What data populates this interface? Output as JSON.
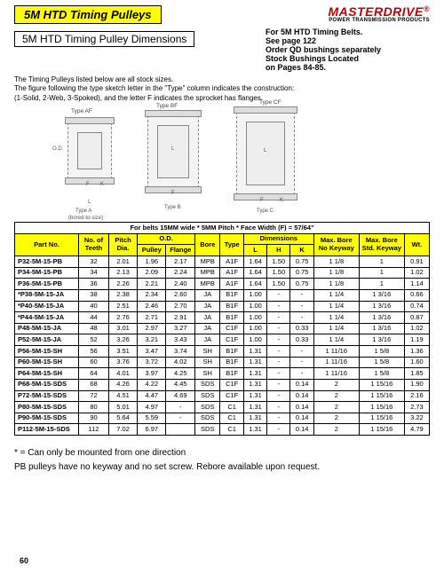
{
  "header": {
    "title": "5M HTD Timing Pulleys",
    "brand": "MASTERDRIVE",
    "brand_sub": "POWER TRANSMISSION PRODUCTS",
    "subtitle": "5M HTD Timing Pulley Dimensions",
    "right_lines": [
      "For 5M HTD Timing Belts.",
      "See page 122",
      "Order QD bushings separately",
      "Stock Bushings Located",
      "on Pages 84-85."
    ],
    "notes_l1": "The Timing Pulleys listed below are all stock sizes.",
    "notes_l2": "The figure following the type sketch letter in the \"Type\" column indicates the construction:",
    "notes_l3": "(1-Solid, 2-Web, 3-Spoked), and the letter F indicates the sprocket has flanges."
  },
  "diagram_labels": {
    "type_af": "Type AF",
    "type_bf": "Type BF",
    "type_cf": "Type CF",
    "type_a": "Type A",
    "type_a2": "(bored-to-size)",
    "type_b": "Type B",
    "type_c": "Type C",
    "od": "O.D.",
    "l": "L",
    "f": "F",
    "k": "K",
    "h": "H"
  },
  "table": {
    "caption": "For belts 15MM wide * 5MM Pitch * Face Width (F) = 57/64\"",
    "headers": {
      "part": "Part No.",
      "teeth": "No. of Teeth",
      "pitch": "Pitch Dia.",
      "od": "O.D.",
      "od_p": "Pulley",
      "od_f": "Flange",
      "bore": "Bore",
      "type": "Type",
      "dims": "Dimensions",
      "dL": "L",
      "dH": "H",
      "dK": "K",
      "maxnk": "Max. Bore No Keyway",
      "maxsk": "Max. Bore Std. Keyway",
      "wt": "Wt."
    },
    "rows": [
      {
        "p": "P32-5M-15-PB",
        "t": "32",
        "pd": "2.01",
        "odp": "1.96",
        "odf": "2.17",
        "bo": "MPB",
        "ty": "A1F",
        "l": "1.64",
        "h": "1.50",
        "k": "0.75",
        "nk": "1 1/8",
        "sk": "1",
        "wt": "0.91"
      },
      {
        "p": "P34-5M-15-PB",
        "t": "34",
        "pd": "2.13",
        "odp": "2.09",
        "odf": "2.24",
        "bo": "MPB",
        "ty": "A1F",
        "l": "1.64",
        "h": "1.50",
        "k": "0.75",
        "nk": "1 1/8",
        "sk": "1",
        "wt": "1.02"
      },
      {
        "p": "P36-5M-15-PB",
        "t": "36",
        "pd": "2.26",
        "odp": "2.21",
        "odf": "2.40",
        "bo": "MPB",
        "ty": "A1F",
        "l": "1.64",
        "h": "1.50",
        "k": "0.75",
        "nk": "1 1/8",
        "sk": "1",
        "wt": "1.14"
      },
      {
        "p": "*P38-5M-15-JA",
        "t": "38",
        "pd": "2.38",
        "odp": "2.34",
        "odf": "2.60",
        "bo": "JA",
        "ty": "B1F",
        "l": "1.00",
        "h": "-",
        "k": "-",
        "nk": "1 1/4",
        "sk": "1 3/16",
        "wt": "0.66"
      },
      {
        "p": "*P40-5M-15-JA",
        "t": "40",
        "pd": "2.51",
        "odp": "2.46",
        "odf": "2.70",
        "bo": "JA",
        "ty": "B1F",
        "l": "1.00",
        "h": "-",
        "k": "-",
        "nk": "1 1/4",
        "sk": "1 3/16",
        "wt": "0.74"
      },
      {
        "p": "*P44-5M-15-JA",
        "t": "44",
        "pd": "2.76",
        "odp": "2.71",
        "odf": "2.91",
        "bo": "JA",
        "ty": "B1F",
        "l": "1.00",
        "h": "-",
        "k": "-",
        "nk": "1 1/4",
        "sk": "1 3/16",
        "wt": "0.87"
      },
      {
        "p": "P48-5M-15-JA",
        "t": "48",
        "pd": "3.01",
        "odp": "2.97",
        "odf": "3.27",
        "bo": "JA",
        "ty": "C1F",
        "l": "1.00",
        "h": "-",
        "k": "0.33",
        "nk": "1 1/4",
        "sk": "1 3/16",
        "wt": "1.02"
      },
      {
        "p": "P52-5M-15-JA",
        "t": "52",
        "pd": "3.26",
        "odp": "3.21",
        "odf": "3.43",
        "bo": "JA",
        "ty": "C1F",
        "l": "1.00",
        "h": "-",
        "k": "0.33",
        "nk": "1 1/4",
        "sk": "1 3/16",
        "wt": "1.19"
      },
      {
        "p": "P56-5M-15-SH",
        "t": "56",
        "pd": "3.51",
        "odp": "3.47",
        "odf": "3.74",
        "bo": "SH",
        "ty": "B1F",
        "l": "1.31",
        "h": "-",
        "k": "-",
        "nk": "1 11/16",
        "sk": "1 5/8",
        "wt": "1.36"
      },
      {
        "p": "P60-5M-15-SH",
        "t": "60",
        "pd": "3.76",
        "odp": "3.72",
        "odf": "4.02",
        "bo": "SH",
        "ty": "B1F",
        "l": "1.31",
        "h": "-",
        "k": "-",
        "nk": "1 11/16",
        "sk": "1 5/8",
        "wt": "1.60"
      },
      {
        "p": "P64-5M-15-SH",
        "t": "64",
        "pd": "4.01",
        "odp": "3.97",
        "odf": "4.25",
        "bo": "SH",
        "ty": "B1F",
        "l": "1.31",
        "h": "-",
        "k": "-",
        "nk": "1 11/16",
        "sk": "1 5/8",
        "wt": "1.85"
      },
      {
        "p": "P68-5M-15-SDS",
        "t": "68",
        "pd": "4.26",
        "odp": "4.22",
        "odf": "4.45",
        "bo": "SDS",
        "ty": "C1F",
        "l": "1.31",
        "h": "-",
        "k": "0.14",
        "nk": "2",
        "sk": "1 15/16",
        "wt": "1.90"
      },
      {
        "p": "P72-5M-15-SDS",
        "t": "72",
        "pd": "4.51",
        "odp": "4.47",
        "odf": "4.69",
        "bo": "SDS",
        "ty": "C1F",
        "l": "1.31",
        "h": "-",
        "k": "0.14",
        "nk": "2",
        "sk": "1 15/16",
        "wt": "2.16"
      },
      {
        "p": "P80-5M-15-SDS",
        "t": "80",
        "pd": "5.01",
        "odp": "4.97",
        "odf": "-",
        "bo": "SDS",
        "ty": "C1",
        "l": "1.31",
        "h": "-",
        "k": "0.14",
        "nk": "2",
        "sk": "1 15/16",
        "wt": "2.73"
      },
      {
        "p": "P90-5M-15-SDS",
        "t": "90",
        "pd": "5.64",
        "odp": "5.59",
        "odf": "-",
        "bo": "SDS",
        "ty": "C1",
        "l": "1.31",
        "h": "-",
        "k": "0.14",
        "nk": "2",
        "sk": "1 15/16",
        "wt": "3.22"
      },
      {
        "p": "P112-5M-15-SDS",
        "t": "112",
        "pd": "7.02",
        "odp": "6.97",
        "odf": "",
        "bo": "SDS",
        "ty": "C1",
        "l": "1.31",
        "h": "-",
        "k": "0.14",
        "nk": "2",
        "sk": "1 15/16",
        "wt": "4.79"
      }
    ]
  },
  "footnotes": {
    "l1": "* = Can only be mounted from one direction",
    "l2": "PB pulleys have no keyway and no set screw. Rebore available upon request."
  },
  "page": "60"
}
